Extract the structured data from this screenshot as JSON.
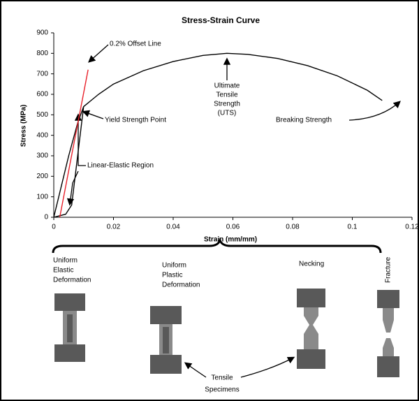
{
  "chart_data": {
    "type": "line",
    "title": "Stress-Strain Curve",
    "x_label": "Strain (mm/mm)",
    "y_label": "Stress (MPa)",
    "xlim": [
      0,
      0.12
    ],
    "xticks": [
      0,
      0.02,
      0.04,
      0.06,
      0.08,
      0.1,
      0.12
    ],
    "ylim": [
      0,
      900
    ],
    "yticks": [
      0,
      100,
      200,
      300,
      400,
      500,
      600,
      700,
      800,
      900
    ],
    "series": [
      {
        "color": "#000000",
        "x": [
          0,
          0.002,
          0.005,
          0.008,
          0.01,
          0.015,
          0.02,
          0.03,
          0.04,
          0.05,
          0.058,
          0.065,
          0.075,
          0.085,
          0.095,
          0.105,
          0.11
        ],
        "values": [
          0,
          120,
          300,
          460,
          540,
          600,
          650,
          715,
          760,
          790,
          800,
          795,
          775,
          740,
          690,
          620,
          570
        ]
      },
      {
        "color": "#000000",
        "x": [
          0,
          0.004,
          0.006,
          0.008,
          0.01
        ],
        "values": [
          0,
          15,
          60,
          300,
          540
        ]
      },
      {
        "color": "#e8202a",
        "x": [
          0.002,
          0.0115
        ],
        "values": [
          0,
          720
        ]
      }
    ],
    "annotations": {
      "offset_line": "0.2% Offset Line",
      "yield_point": "Yield Strength Point",
      "linear_elastic": "Linear-Elastic Region",
      "uts": [
        "Ultimate",
        "Tensile",
        "Strength",
        "(UTS)"
      ],
      "breaking": "Breaking Strength"
    }
  },
  "diagram": {
    "stages": [
      [
        "Uniform",
        "Elastic",
        "Deformation"
      ],
      [
        "Uniform",
        "Plastic",
        "Deformation"
      ],
      [
        "Necking"
      ],
      [
        "Fracture"
      ]
    ],
    "specimens_label": [
      "Tensile",
      "Specimens"
    ]
  }
}
